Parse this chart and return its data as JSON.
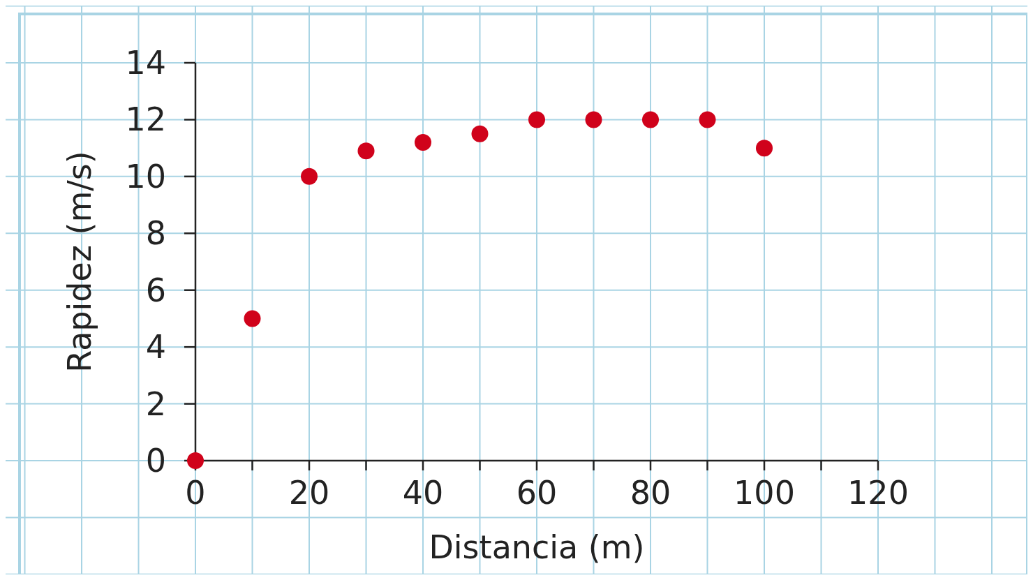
{
  "chart_data": {
    "type": "scatter",
    "xlabel": "Distancia (m)",
    "ylabel": "Rapidez (m/s)",
    "x": [
      0,
      10,
      20,
      30,
      40,
      50,
      60,
      70,
      80,
      90,
      100
    ],
    "values": [
      0,
      5,
      10,
      10.9,
      11.2,
      11.5,
      12,
      12,
      12,
      12,
      11
    ],
    "color": "#d0021b",
    "marker": "circle",
    "xlim": [
      0,
      120
    ],
    "ylim": [
      0,
      14
    ],
    "xticks": [
      0,
      {
        "value": 10,
        "label": null
      },
      20,
      {
        "value": 30,
        "label": null
      },
      40,
      {
        "value": 50,
        "label": null
      },
      60,
      {
        "value": 70,
        "label": null
      },
      80,
      {
        "value": 90,
        "label": null
      },
      100,
      {
        "value": 110,
        "label": null
      },
      120
    ],
    "yticks": [
      0,
      2,
      4,
      6,
      8,
      10,
      12,
      14
    ],
    "grid": true
  }
}
